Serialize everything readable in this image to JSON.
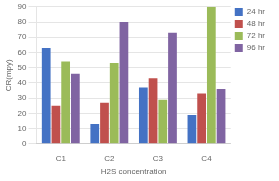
{
  "chart_data": {
    "type": "bar",
    "categories": [
      "C1",
      "C2",
      "C3",
      "C4"
    ],
    "series": [
      {
        "name": "24 hr",
        "color": "#4472C4",
        "values": [
          63,
          13,
          37,
          19
        ]
      },
      {
        "name": "48 hr",
        "color": "#C0504D",
        "values": [
          25,
          27,
          43,
          33
        ]
      },
      {
        "name": "72 hr",
        "color": "#9BBB59",
        "values": [
          54,
          53,
          29,
          90
        ]
      },
      {
        "name": "96 hr",
        "color": "#8064A2",
        "values": [
          46,
          80,
          73,
          36
        ]
      }
    ],
    "xlabel": "H2S concentration",
    "ylabel": "CR(mpy)",
    "ylim": [
      0,
      90
    ],
    "yticks": [
      0,
      10,
      20,
      30,
      40,
      50,
      60,
      70,
      80,
      90
    ],
    "grid": true,
    "legend": "upper right"
  }
}
